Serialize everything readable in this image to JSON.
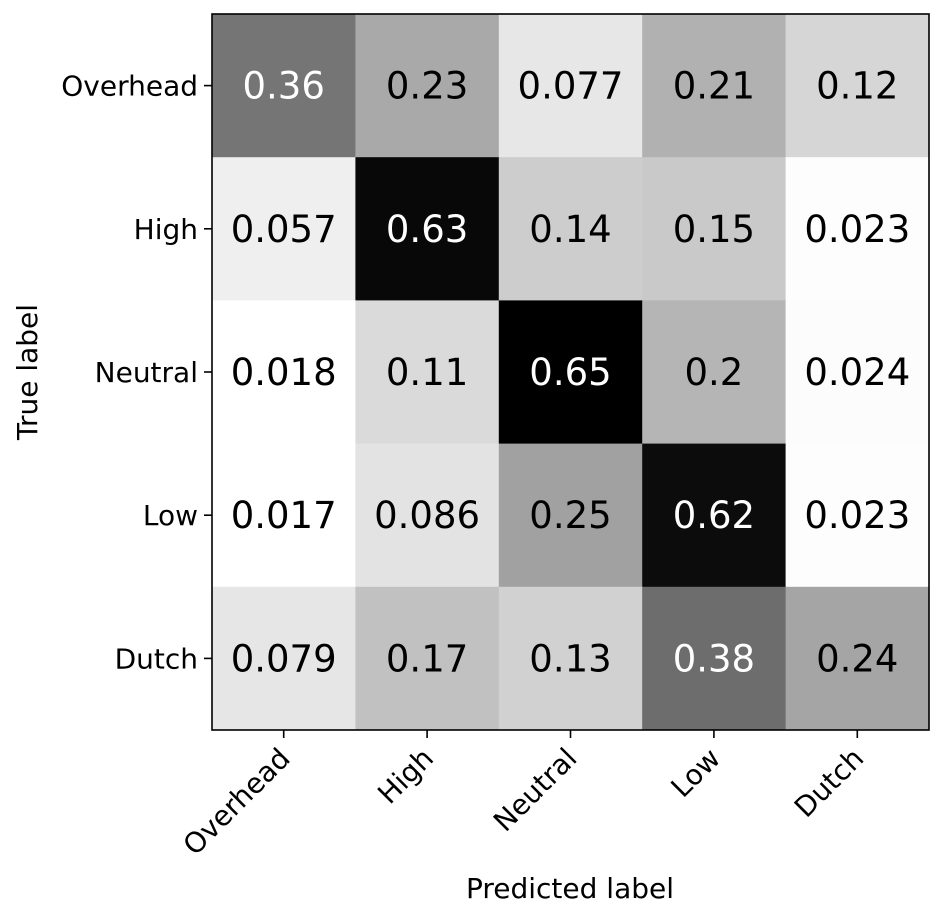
{
  "chart_data": {
    "type": "heatmap",
    "title": "",
    "xlabel": "Predicted label",
    "ylabel": "True label",
    "x_categories": [
      "Overhead",
      "High",
      "Neutral",
      "Low",
      "Dutch"
    ],
    "y_categories": [
      "Overhead",
      "High",
      "Neutral",
      "Low",
      "Dutch"
    ],
    "matrix": [
      [
        0.36,
        0.23,
        0.077,
        0.21,
        0.12
      ],
      [
        0.057,
        0.63,
        0.14,
        0.15,
        0.023
      ],
      [
        0.018,
        0.11,
        0.65,
        0.2,
        0.024
      ],
      [
        0.017,
        0.086,
        0.25,
        0.62,
        0.023
      ],
      [
        0.079,
        0.17,
        0.13,
        0.38,
        0.24
      ]
    ],
    "colormap": "greys",
    "vmin": 0.017,
    "vmax": 0.65,
    "colors": {
      "low": "#ffffff",
      "high": "#000000",
      "text_dark": "#000000",
      "text_light": "#ffffff"
    }
  }
}
